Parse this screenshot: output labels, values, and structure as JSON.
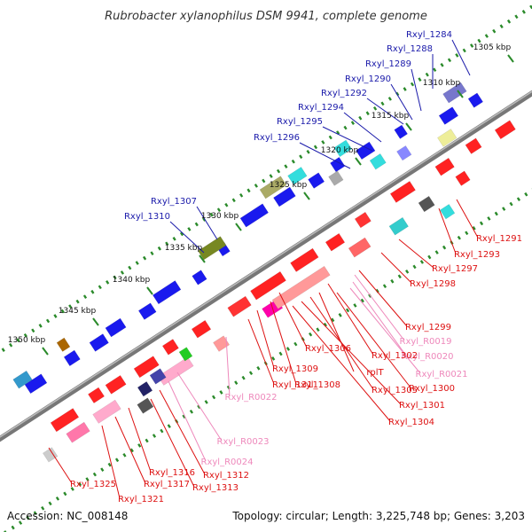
{
  "title": "Rubrobacter xylanophilus DSM 9941, complete genome",
  "footer": {
    "accession": "Accession: NC_008148",
    "summary": "Topology: circular; Length: 3,225,748 bp; Genes: 3,203"
  },
  "colors": {
    "backbone": "#888888",
    "tick": "#2a8a2a",
    "label_outer": "#1a1aaa",
    "label_inner": "#dd1111",
    "label_rna": "#ee88bb"
  },
  "scale_ticks": [
    "1305 kbp",
    "1310 kbp",
    "1315 kbp",
    "1320 kbp",
    "1325 kbp",
    "1330 kbp",
    "1335 kbp",
    "1340 kbp",
    "1345 kbp",
    "1350 kbp"
  ],
  "outer_labels": [
    "Rxyl_1284",
    "Rxyl_1288",
    "Rxyl_1289",
    "Rxyl_1290",
    "Rxyl_1292",
    "Rxyl_1294",
    "Rxyl_1295",
    "Rxyl_1296",
    "Rxyl_1307",
    "Rxyl_1310"
  ],
  "inner_labels": [
    "Rxyl_1291",
    "Rxyl_1293",
    "Rxyl_1297",
    "Rxyl_1298",
    "Rxyl_1299",
    "Rxyl_R0019",
    "Rxyl_R0020",
    "Rxyl_R0021",
    "Rxyl_1300",
    "Rxyl_1302",
    "rplT",
    "Rxyl_1305",
    "Rxyl_1301",
    "Rxyl_1304",
    "Rxyl_1306",
    "Rxyl_1308",
    "Rxyl_1309",
    "Rxyl_1311",
    "Rxyl_R0022",
    "Rxyl_R0023",
    "Rxyl_R0024",
    "Rxyl_1312",
    "Rxyl_1313",
    "Rxyl_1316",
    "Rxyl_1317",
    "Rxyl_1321",
    "Rxyl_1325"
  ]
}
